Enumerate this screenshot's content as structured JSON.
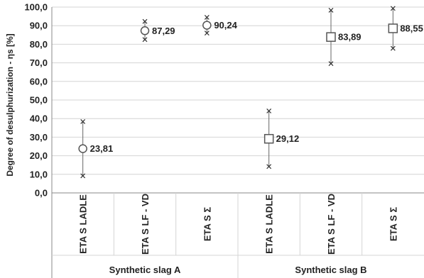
{
  "chart_data": {
    "type": "scatter",
    "ylabel": "Degree of desulphurization - ηs [%]",
    "ylim": [
      0,
      100
    ],
    "y_ticks": [
      "0,0",
      "10,0",
      "20,0",
      "30,0",
      "40,0",
      "50,0",
      "60,0",
      "70,0",
      "80,0",
      "90,0",
      "100,0"
    ],
    "grid": true,
    "categories": [
      "ETA S LADLE",
      "ETA S LF - VD",
      "ETA S Σ",
      "ETA S LADLE",
      "ETA S LF - VD",
      "ETA S Σ"
    ],
    "groups": [
      {
        "label": "Synthetic slag A",
        "categories": [
          0,
          1,
          2
        ]
      },
      {
        "label": "Synthetic slag B",
        "categories": [
          3,
          4,
          5
        ]
      }
    ],
    "points": [
      {
        "category": 0,
        "mean": 23.81,
        "min": 9.2,
        "max": 38.4,
        "label": "23,81",
        "marker": "circle"
      },
      {
        "category": 1,
        "mean": 87.29,
        "min": 82.5,
        "max": 92.3,
        "label": "87,29",
        "marker": "circle"
      },
      {
        "category": 2,
        "mean": 90.24,
        "min": 86.0,
        "max": 94.5,
        "label": "90,24",
        "marker": "circle"
      },
      {
        "category": 3,
        "mean": 29.12,
        "min": 14.2,
        "max": 44.1,
        "label": "29,12",
        "marker": "square"
      },
      {
        "category": 4,
        "mean": 83.89,
        "min": 69.6,
        "max": 98.3,
        "label": "83,89",
        "marker": "square"
      },
      {
        "category": 5,
        "mean": 88.55,
        "min": 77.8,
        "max": 99.3,
        "label": "88,55",
        "marker": "square"
      }
    ],
    "colors": {
      "marker_fill": "#ffffff",
      "marker_stroke": "#555555",
      "whisker": "#666666",
      "grid": "#d4d4d4",
      "axis": "#888888"
    }
  }
}
